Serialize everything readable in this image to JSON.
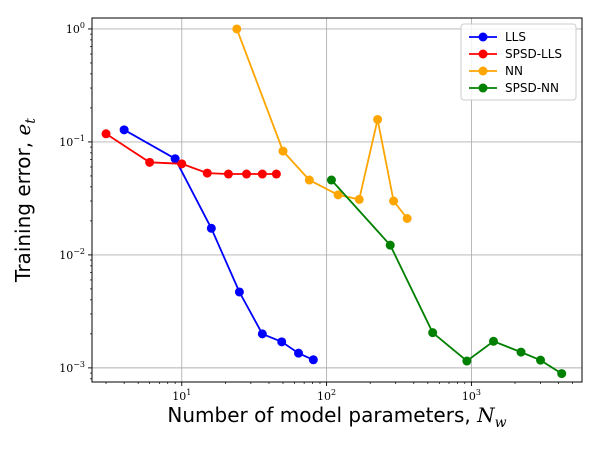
{
  "chart_data": {
    "type": "line",
    "title": "",
    "xlabel": "Number of model parameters, ",
    "xlabel_symbol": "N",
    "xlabel_sub": "w",
    "ylabel": "Training error, ",
    "ylabel_symbol": "e",
    "ylabel_sub": "t",
    "xscale": "log",
    "yscale": "log",
    "xlim": [
      2.4,
      5800
    ],
    "ylim": [
      0.00075,
      1.25
    ],
    "grid": true,
    "legend_position": "top-right",
    "x_ticks": [
      {
        "value": 10,
        "base": "10",
        "exp": "1"
      },
      {
        "value": 100,
        "base": "10",
        "exp": "2"
      },
      {
        "value": 1000,
        "base": "10",
        "exp": "3"
      }
    ],
    "y_ticks": [
      {
        "value": 0.001,
        "base": "10",
        "exp": "−3"
      },
      {
        "value": 0.01,
        "base": "10",
        "exp": "−2"
      },
      {
        "value": 0.1,
        "base": "10",
        "exp": "−1"
      },
      {
        "value": 1,
        "base": "10",
        "exp": "0"
      }
    ],
    "series": [
      {
        "name": "LLS",
        "color": "#0000ff",
        "x": [
          4,
          9,
          16,
          25,
          36,
          49,
          64,
          81
        ],
        "y": [
          0.128,
          0.071,
          0.0172,
          0.0047,
          0.002,
          0.0017,
          0.00135,
          0.00118
        ]
      },
      {
        "name": "SPSD-LLS",
        "color": "#ff0000",
        "x": [
          3,
          6,
          10,
          15,
          21,
          28,
          36,
          45
        ],
        "y": [
          0.118,
          0.066,
          0.064,
          0.053,
          0.052,
          0.052,
          0.052,
          0.052
        ]
      },
      {
        "name": "NN",
        "color": "#ffa500",
        "x": [
          24,
          50,
          76,
          120,
          168,
          225,
          290,
          360
        ],
        "y": [
          1.0,
          0.083,
          0.046,
          0.034,
          0.031,
          0.158,
          0.03,
          0.021
        ]
      },
      {
        "name": "SPSD-NN",
        "color": "#008000",
        "x": [
          108,
          275,
          540,
          930,
          1420,
          2200,
          3000,
          4200
        ],
        "y": [
          0.046,
          0.0122,
          0.00205,
          0.00115,
          0.00172,
          0.00138,
          0.00117,
          0.00089
        ]
      }
    ]
  }
}
